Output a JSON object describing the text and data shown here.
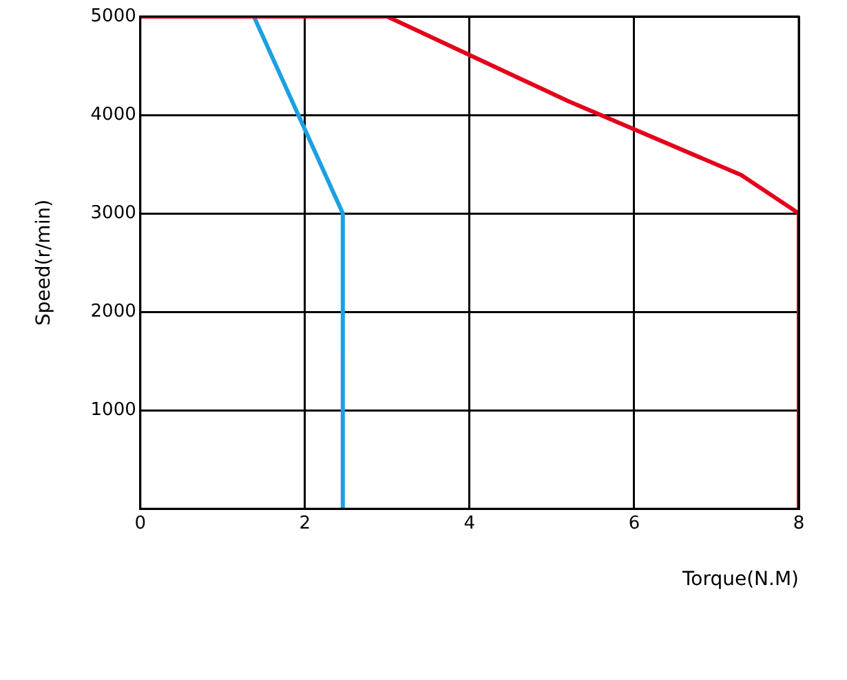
{
  "chart_data": {
    "type": "line",
    "xlabel": "Torque(N.M)",
    "ylabel": "Speed(r/min)",
    "xlim": [
      0,
      8
    ],
    "xticks": [
      0,
      2,
      4,
      6,
      8
    ],
    "ylim": [
      0,
      5000
    ],
    "yticks": [
      {
        "value": 0,
        "label": null
      },
      1000,
      2000,
      3000,
      4000,
      5000
    ],
    "grid": true,
    "legend": false,
    "marker": "none",
    "line_style": "solid",
    "series": [
      {
        "color": "#e3001b",
        "x": [
          0,
          3.0,
          5.2,
          7.3,
          8,
          8
        ],
        "values": [
          5000,
          5000,
          4140,
          3390,
          3000,
          0
        ]
      },
      {
        "color": "#1ba1e2",
        "x": [
          1.38,
          2.46,
          2.46
        ],
        "values": [
          5000,
          3000,
          0
        ]
      }
    ]
  }
}
